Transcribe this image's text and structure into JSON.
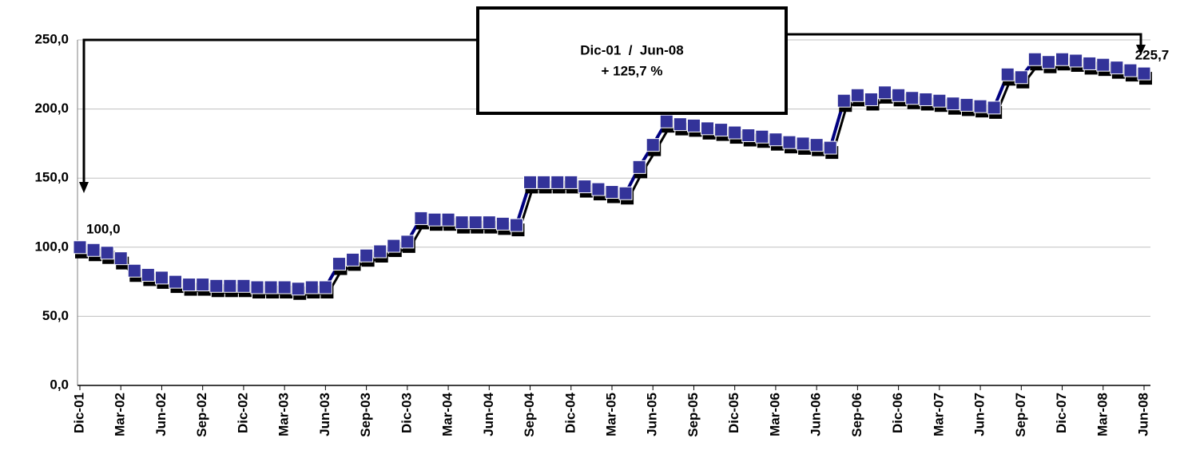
{
  "chart_data": {
    "type": "line",
    "categories": [
      "Dic-01",
      null,
      null,
      "Mar-02",
      null,
      null,
      "Jun-02",
      null,
      null,
      "Sep-02",
      null,
      null,
      "Dic-02",
      null,
      null,
      "Mar-03",
      null,
      null,
      "Jun-03",
      null,
      null,
      "Sep-03",
      null,
      null,
      "Dic-03",
      null,
      null,
      "Mar-04",
      null,
      null,
      "Jun-04",
      null,
      null,
      "Sep-04",
      null,
      null,
      "Dic-04",
      null,
      null,
      "Mar-05",
      null,
      null,
      "Jun-05",
      null,
      null,
      "Sep-05",
      null,
      null,
      "Dic-05",
      null,
      null,
      "Mar-06",
      null,
      null,
      "Jun-06",
      null,
      null,
      "Sep-06",
      null,
      null,
      "Dic-06",
      null,
      null,
      "Mar-07",
      null,
      null,
      "Jun-07",
      null,
      null,
      "Sep-07",
      null,
      null,
      "Dic-07",
      null,
      null,
      "Mar-08",
      null,
      null,
      "Jun-08"
    ],
    "series": [
      {
        "color": "#000080",
        "marker_color": "#333399",
        "values": [
          100,
          98,
          96,
          92,
          83,
          80,
          78,
          75,
          73,
          73,
          72,
          72,
          72,
          71,
          71,
          71,
          70,
          71,
          71,
          88,
          91,
          94,
          97,
          101,
          104,
          121,
          120,
          120,
          118,
          118,
          118,
          117,
          116,
          147,
          147,
          147,
          147,
          144,
          142,
          140,
          139,
          158,
          174,
          191,
          189,
          188,
          186,
          185,
          183,
          181,
          180,
          178,
          176,
          175,
          174,
          172,
          206,
          210,
          207,
          212,
          210,
          208,
          207,
          206,
          204,
          203,
          202,
          201,
          225,
          223,
          236,
          234,
          236,
          235,
          233,
          232,
          230,
          228,
          225.7
        ],
        "value_labels": [
          "100,0",
          null,
          null,
          null,
          null,
          null,
          null,
          null,
          null,
          null,
          null,
          null,
          null,
          null,
          null,
          null,
          null,
          null,
          null,
          null,
          null,
          null,
          null,
          null,
          null,
          null,
          null,
          null,
          null,
          null,
          null,
          null,
          null,
          null,
          null,
          null,
          null,
          null,
          null,
          null,
          null,
          null,
          null,
          null,
          null,
          null,
          null,
          null,
          null,
          null,
          null,
          null,
          null,
          null,
          null,
          null,
          null,
          null,
          null,
          null,
          null,
          null,
          null,
          null,
          null,
          null,
          null,
          null,
          null,
          null,
          null,
          null,
          null,
          null,
          null,
          null,
          null,
          null,
          "225,7"
        ]
      }
    ],
    "ylim": [
      0,
      250
    ],
    "yticks": [
      {
        "value": 0,
        "label": "0,0"
      },
      {
        "value": 50,
        "label": "50,0"
      },
      {
        "value": 100,
        "label": "100,0"
      },
      {
        "value": 150,
        "label": "150,0"
      },
      {
        "value": 200,
        "label": "200,0"
      },
      {
        "value": 250,
        "label": "250,0"
      }
    ],
    "grid": true,
    "annotation": [
      "Dic-01  /  Jun-08",
      "+ 125,7 %"
    ]
  }
}
